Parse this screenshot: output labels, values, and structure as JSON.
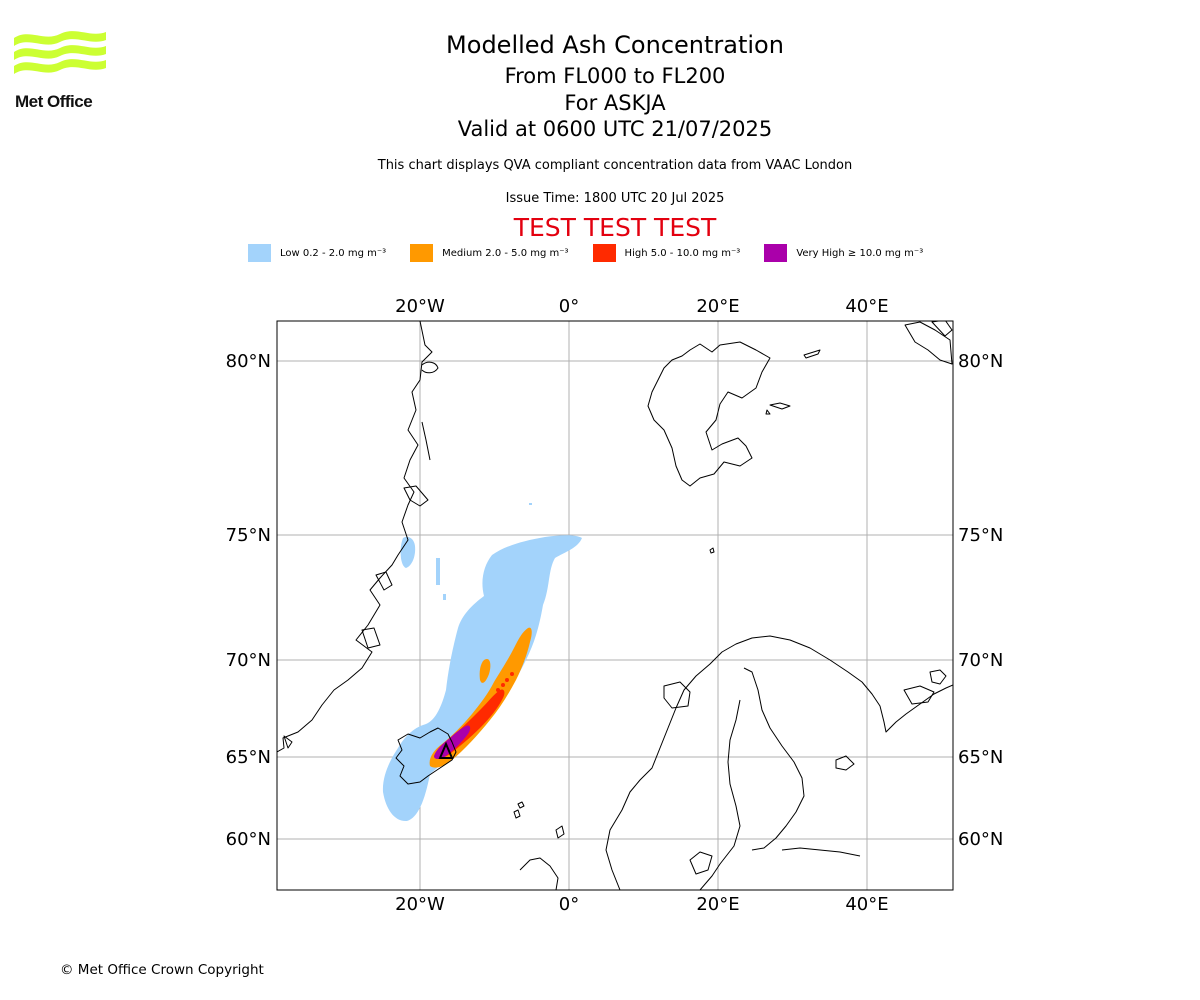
{
  "logo": {
    "text": "Met Office",
    "color": "#ccff33"
  },
  "titles": {
    "main": "Modelled Ash Concentration",
    "levels": "From FL000 to FL200",
    "volcano": "For ASKJA",
    "valid": "Valid at 0600 UTC 21/07/2025",
    "info": "This chart displays QVA compliant concentration data from VAAC London",
    "issue": "Issue Time: 1800 UTC 20 Jul 2025",
    "test": "TEST TEST TEST"
  },
  "legend": [
    {
      "label": "Low 0.2 - 2.0 mg m⁻³",
      "color": "#a3d3fb"
    },
    {
      "label": "Medium 2.0 - 5.0 mg m⁻³",
      "color": "#ff9900"
    },
    {
      "label": "High 5.0 - 10.0 mg m⁻³",
      "color": "#ff2a00"
    },
    {
      "label": "Very High  ≥  10.0 mg m⁻³",
      "color": "#aa00aa"
    }
  ],
  "map": {
    "lon_labels": [
      "20°W",
      "0°",
      "20°E",
      "40°E"
    ],
    "lat_labels": [
      "80°N",
      "75°N",
      "70°N",
      "65°N",
      "60°N"
    ]
  },
  "footer": {
    "copyright": "© Met Office Crown Copyright"
  }
}
